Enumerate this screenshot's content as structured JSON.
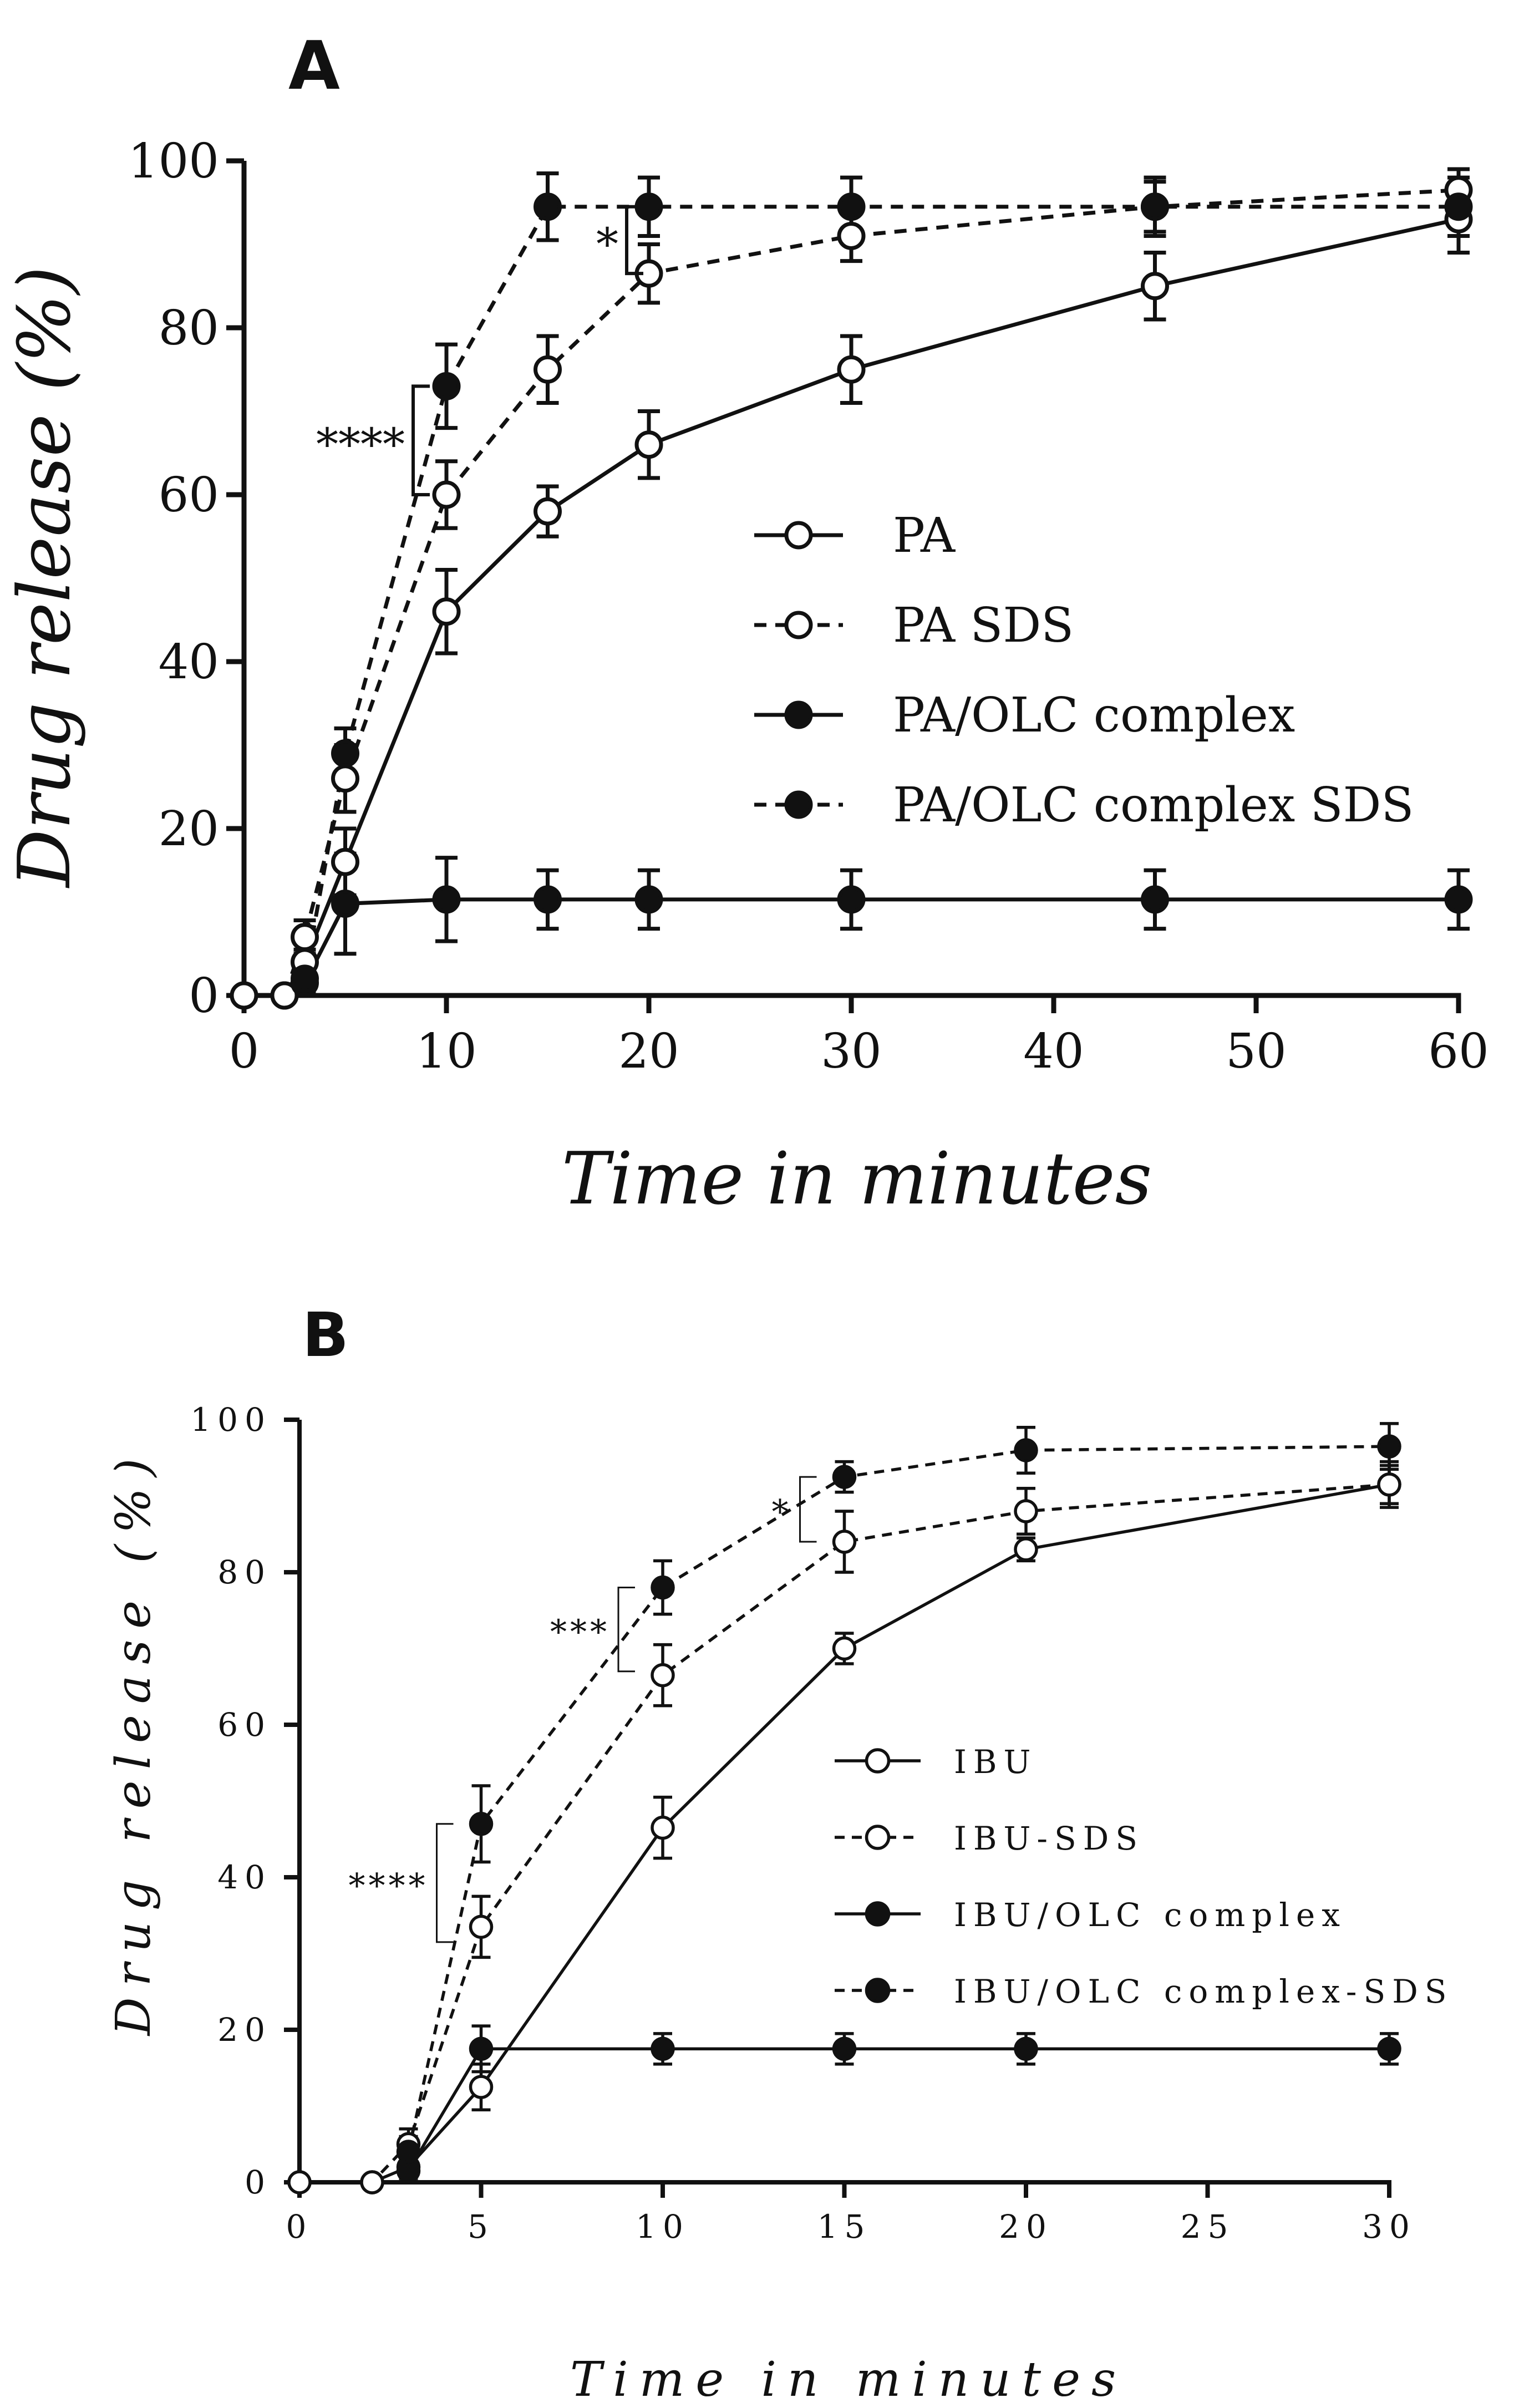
{
  "chart_data": [
    {
      "panel": "A",
      "type": "line",
      "xlabel": "Time in minutes",
      "ylabel": "Drug release (%)",
      "xlim": [
        0,
        60
      ],
      "ylim": [
        0,
        100
      ],
      "xticks": [
        0,
        10,
        20,
        30,
        40,
        50,
        60
      ],
      "yticks": [
        0,
        20,
        40,
        60,
        80,
        100
      ],
      "legend_position": "center-right",
      "series": [
        {
          "name": "PA",
          "marker": "open",
          "line": "solid",
          "x": [
            0,
            2,
            3,
            5,
            10,
            15,
            20,
            30,
            45,
            60
          ],
          "y": [
            0,
            0,
            4,
            16,
            46,
            58,
            66,
            75,
            85,
            93
          ],
          "err": [
            0,
            0,
            1.5,
            4,
            5,
            3,
            4,
            4,
            4,
            4
          ]
        },
        {
          "name": "PA SDS",
          "marker": "open",
          "line": "dashed",
          "x": [
            0,
            2,
            3,
            5,
            10,
            15,
            20,
            30,
            45,
            60
          ],
          "y": [
            0,
            0,
            7,
            26,
            60,
            75,
            86.5,
            91,
            94.5,
            96.5
          ],
          "err": [
            0,
            0,
            2,
            4,
            4,
            4,
            3.5,
            3,
            3,
            2.5
          ]
        },
        {
          "name": "PA/OLC complex",
          "marker": "filled",
          "line": "solid",
          "x": [
            3,
            5,
            10,
            15,
            20,
            30,
            45,
            60
          ],
          "y": [
            1.5,
            11,
            11.5,
            11.5,
            11.5,
            11.5,
            11.5,
            11.5
          ],
          "err": [
            1,
            6,
            5,
            3.5,
            3.5,
            3.5,
            3.5,
            3.5
          ]
        },
        {
          "name": "PA/OLC complex SDS",
          "marker": "filled",
          "line": "dashed",
          "x": [
            3,
            5,
            10,
            15,
            20,
            30,
            45,
            60
          ],
          "y": [
            2,
            29,
            73,
            94.5,
            94.5,
            94.5,
            94.5,
            94.5
          ],
          "err": [
            1,
            3,
            5,
            4,
            3.5,
            3.5,
            3.5,
            3.5
          ]
        }
      ],
      "annotations": [
        {
          "text": "****",
          "x": 10,
          "y_low": 60,
          "y_high": 73
        },
        {
          "text": "*",
          "x": 20,
          "y_low": 86.5,
          "y_high": 94.5
        }
      ]
    },
    {
      "panel": "B",
      "type": "line",
      "xlabel": "Time in minutes",
      "ylabel": "Drug release (%)",
      "xlim": [
        0,
        30
      ],
      "ylim": [
        0,
        100
      ],
      "xticks": [
        0,
        5,
        10,
        15,
        20,
        25,
        30
      ],
      "yticks": [
        0,
        20,
        40,
        60,
        80,
        100
      ],
      "legend_position": "center-right",
      "series": [
        {
          "name": "IBU",
          "marker": "open",
          "line": "solid",
          "x": [
            0,
            2,
            3,
            5,
            10,
            15,
            20,
            30
          ],
          "y": [
            0,
            0,
            2,
            12.5,
            46.5,
            70,
            83,
            91.5
          ],
          "err": [
            0,
            0,
            1,
            3,
            4,
            2,
            1.5,
            3
          ]
        },
        {
          "name": "IBU-SDS",
          "marker": "open",
          "line": "dashed",
          "x": [
            0,
            2,
            3,
            5,
            10,
            15,
            20,
            30
          ],
          "y": [
            0,
            0,
            5,
            33.5,
            66.5,
            84,
            88,
            91.5
          ],
          "err": [
            0,
            0,
            2,
            4,
            4,
            4,
            3,
            2.5
          ]
        },
        {
          "name": "IBU/OLC complex",
          "marker": "filled",
          "line": "solid",
          "x": [
            3,
            5,
            10,
            15,
            20,
            30
          ],
          "y": [
            1.5,
            17.5,
            17.5,
            17.5,
            17.5,
            17.5
          ],
          "err": [
            1,
            3,
            2,
            2,
            2,
            2
          ]
        },
        {
          "name": "IBU/OLC complex-SDS",
          "marker": "filled",
          "line": "dashed",
          "x": [
            3,
            5,
            10,
            15,
            20,
            30
          ],
          "y": [
            4,
            47,
            78,
            92.5,
            96,
            96.5
          ],
          "err": [
            2,
            5,
            3.5,
            2,
            3,
            3
          ]
        }
      ],
      "annotations": [
        {
          "text": "****",
          "x": 5,
          "y_low": 31.5,
          "y_high": 47
        },
        {
          "text": "***",
          "x": 10,
          "y_low": 67,
          "y_high": 78
        },
        {
          "text": "*",
          "x": 15,
          "y_low": 84,
          "y_high": 92.5
        }
      ]
    }
  ]
}
